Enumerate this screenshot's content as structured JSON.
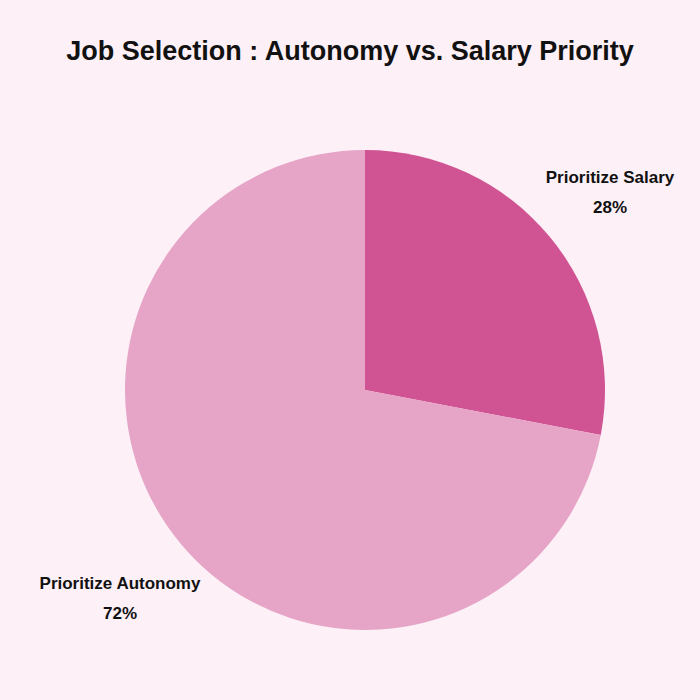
{
  "chart_data": {
    "type": "pie",
    "title": "Job Selection : Autonomy vs. Salary Priority",
    "categories": [
      "Prioritize Salary",
      "Prioritize Autonomy"
    ],
    "values": [
      28,
      72
    ],
    "value_labels": [
      "28%",
      "72%"
    ],
    "colors": [
      "#d05393",
      "#e6a4c7"
    ],
    "data_labels": true
  }
}
